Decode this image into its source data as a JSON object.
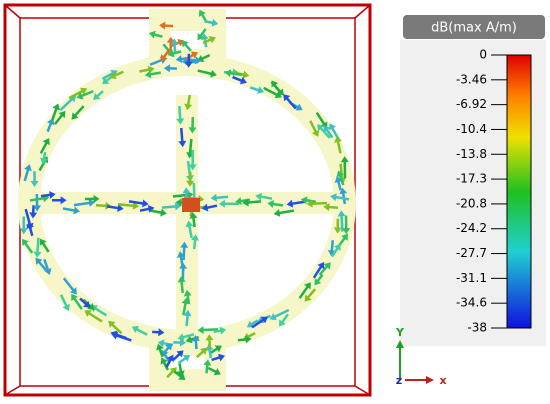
{
  "colorbar": {
    "title": "dB(max A/m)",
    "ticks": [
      0,
      -3.46,
      -6.92,
      -10.4,
      -13.8,
      -17.3,
      -20.8,
      -24.2,
      -27.7,
      -31.1,
      -34.6,
      -38
    ]
  },
  "axes": {
    "y": "Y",
    "z": "z",
    "x": "x"
  }
}
